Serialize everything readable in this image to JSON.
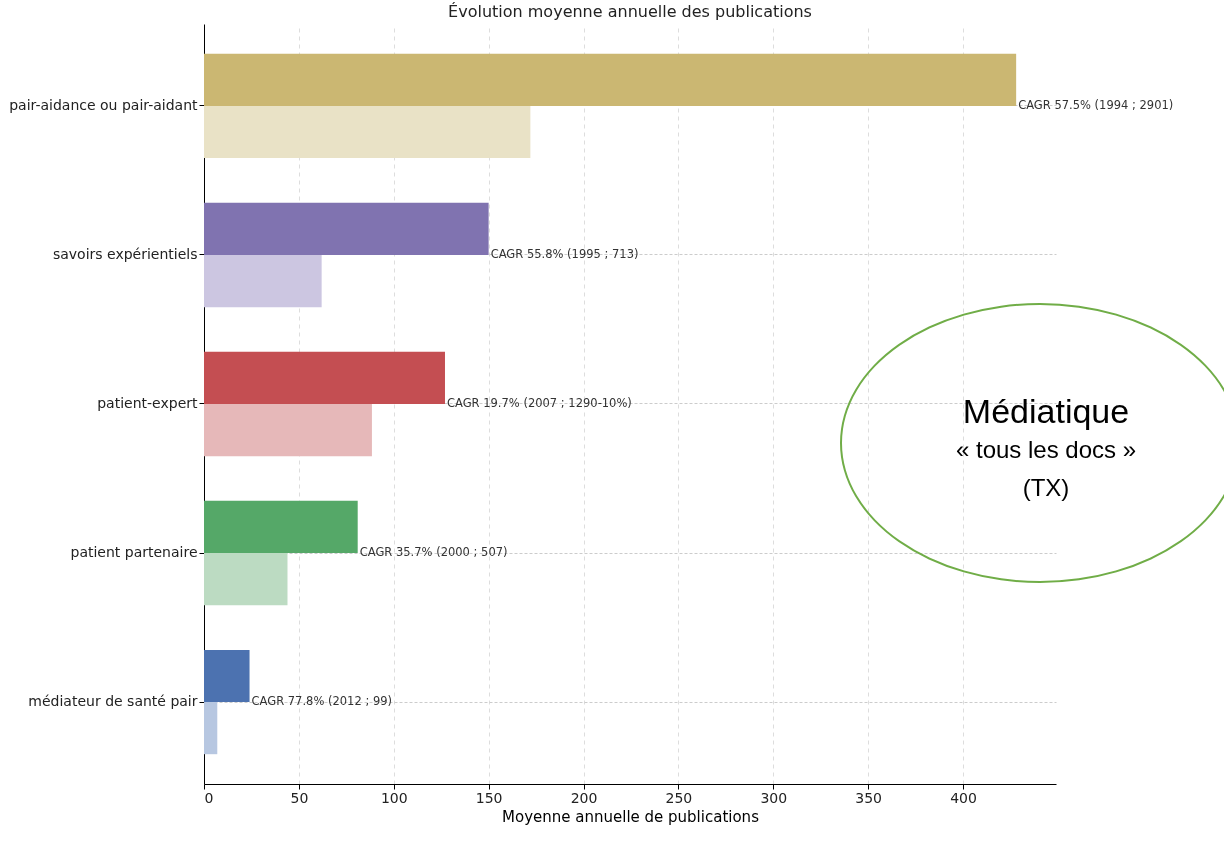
{
  "chart_data": {
    "type": "bar",
    "orientation": "horizontal",
    "title": "Évolution moyenne annuelle des publications",
    "xlabel": "Moyenne annuelle de publications",
    "categories": [
      "pair-aidance ou pair-aidant",
      "savoirs expérientiels",
      "patient-expert",
      "patient partenaire",
      "médiateur de santé pair"
    ],
    "series": [
      {
        "values": [
          428,
          150,
          127,
          81,
          24
        ],
        "colors": [
          "#cbb772",
          "#8073b0",
          "#c44e52",
          "#55a868",
          "#4c72b0"
        ]
      },
      {
        "values": [
          172,
          62,
          88.5,
          44,
          7
        ],
        "colors": [
          "#e9e2c6",
          "#ccc6e1",
          "#e6b8b9",
          "#bcdbc2",
          "#b7c7e1"
        ]
      }
    ],
    "xlim": [
      0,
      449
    ],
    "xticks": [
      0,
      50,
      100,
      150,
      200,
      250,
      300,
      350,
      400
    ],
    "grid": true,
    "annotations": [
      {
        "text": "CAGR 57.5%  (1994 ; 2901)",
        "x": 428,
        "y": "pair-aidance ou pair-aidant"
      },
      {
        "text": "CAGR 55.8%  (1995 ; 713)",
        "x": 150,
        "y": "savoirs expérientiels"
      },
      {
        "text": "CAGR 19.7%  (2007 ; 1290-10%)",
        "x": 127,
        "y": "patient-expert"
      },
      {
        "text": "CAGR 35.7%  (2000 ; 507)",
        "x": 81,
        "y": "patient partenaire"
      },
      {
        "text": "CAGR 77.8%  (2012 ; 99)",
        "x": 24,
        "y": "médiateur de santé pair"
      },
      "Médiatique",
      "« tous les docs »",
      "(TX)"
    ]
  }
}
